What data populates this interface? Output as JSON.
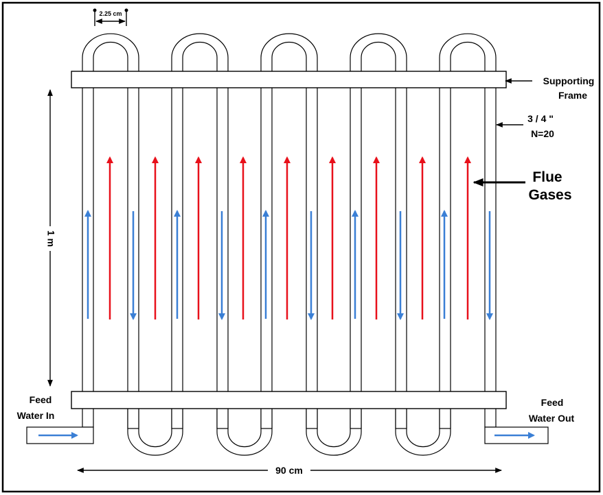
{
  "labels": {
    "tube_pitch": "2.25 cm",
    "supporting_frame": [
      "Supporting",
      "Frame"
    ],
    "tube_spec": [
      "3 / 4 \"",
      "N=20"
    ],
    "flue_gases": [
      "Flue",
      "Gases"
    ],
    "height": "1 m",
    "width": "90 cm",
    "feed_in": [
      "Feed",
      "Water In"
    ],
    "feed_out": [
      "Feed",
      "Water Out"
    ]
  },
  "colors": {
    "water_flow": "#3a7fd5",
    "flue_gas_flow": "#e8101a",
    "outline": "#000000",
    "border": "#000000"
  },
  "icons": {
    "water_flow_arrow": "water-flow-arrow-icon",
    "flue_gas_arrow": "flue-gas-arrow-icon",
    "pointer_arrow": "pointer-arrow-icon"
  }
}
